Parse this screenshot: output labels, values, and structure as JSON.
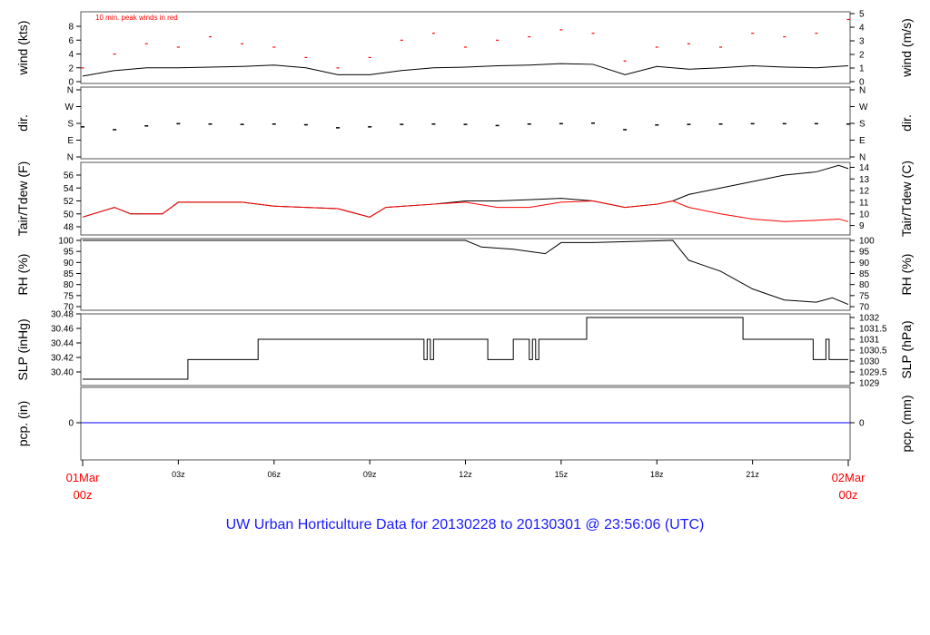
{
  "title": "UW Urban Horticulture Data for 20130228  to  20130301 @ 23:56:06  (UTC)",
  "chart_data": [
    {
      "type": "line",
      "panel": "wind",
      "ylabel": "wind (kts)",
      "ylabel_right": "wind (m/s)",
      "annotation": "10 min. peak winds in red",
      "ylim": [
        0,
        10
      ],
      "yticks": [
        0,
        2,
        4,
        6,
        8
      ],
      "yticks_right": [
        0,
        1,
        2,
        3,
        4,
        5
      ],
      "x": [
        0,
        1,
        2,
        3,
        4,
        5,
        6,
        7,
        8,
        9,
        10,
        11,
        12,
        13,
        14,
        15,
        16,
        17,
        18,
        19,
        20,
        21,
        22,
        23,
        24
      ],
      "series": [
        {
          "color": "#000000",
          "values": [
            0.8,
            1.6,
            2.0,
            2.0,
            2.1,
            2.2,
            2.4,
            2.0,
            1.0,
            1.0,
            1.6,
            2.0,
            2.1,
            2.3,
            2.4,
            2.6,
            2.5,
            1.0,
            2.2,
            1.8,
            2.0,
            2.3,
            2.1,
            2.0,
            2.3
          ]
        },
        {
          "color": "#ff0000",
          "style": "points",
          "values": [
            2.0,
            4.0,
            5.5,
            5.0,
            6.5,
            5.5,
            5.0,
            3.5,
            2.0,
            3.5,
            6.0,
            7.0,
            5.0,
            6.0,
            6.5,
            7.5,
            7.0,
            3.0,
            5.0,
            5.5,
            5.0,
            7.0,
            6.5,
            7.0,
            9.0
          ]
        }
      ]
    },
    {
      "type": "scatter",
      "panel": "dir",
      "ylabel": "dir.",
      "ylabel_right": "dir.",
      "yticks": [
        "N",
        "E",
        "S",
        "W",
        "N"
      ],
      "ylim": [
        0,
        360
      ],
      "x": [
        0,
        1,
        2,
        3,
        4,
        5,
        6,
        7,
        8,
        9,
        10,
        11,
        12,
        13,
        14,
        15,
        16,
        17,
        18,
        19,
        20,
        21,
        22,
        23,
        24
      ],
      "values": [
        165,
        150,
        170,
        182,
        180,
        178,
        180,
        176,
        160,
        165,
        178,
        180,
        178,
        172,
        180,
        182,
        185,
        150,
        175,
        178,
        180,
        182,
        182,
        182,
        180
      ]
    },
    {
      "type": "line",
      "panel": "temperature",
      "ylabel": "Tair/Tdew (F)",
      "ylabel_right": "Tair/Tdew (C)",
      "ylim": [
        46.3,
        57.9
      ],
      "yticks": [
        48,
        50,
        52,
        54,
        56
      ],
      "yticks_right": [
        9,
        10,
        11,
        12,
        13,
        14
      ],
      "x": [
        0,
        1,
        1.5,
        2.5,
        3,
        5,
        6,
        8,
        9,
        9.5,
        11,
        12,
        13,
        14,
        15,
        16,
        17,
        18,
        18.5,
        19,
        20,
        21,
        22,
        23,
        23.7,
        24
      ],
      "series": [
        {
          "name": "Tair",
          "color": "#000000",
          "values": [
            49.5,
            51,
            50,
            50,
            51.8,
            51.8,
            51.2,
            50.8,
            49.5,
            51,
            51.5,
            52,
            52,
            52.2,
            52.4,
            52,
            51,
            51.5,
            52,
            53,
            54,
            55,
            56,
            56.5,
            57.5,
            57
          ]
        },
        {
          "name": "Tdew",
          "color": "#ff0000",
          "values": [
            49.5,
            51,
            50,
            50,
            51.8,
            51.8,
            51.2,
            50.8,
            49.5,
            51,
            51.5,
            51.8,
            51,
            51,
            51.8,
            52,
            51,
            51.5,
            52,
            51,
            50,
            49.2,
            48.8,
            49,
            49.2,
            48.8
          ]
        }
      ]
    },
    {
      "type": "line",
      "panel": "rh",
      "ylabel": "RH (%)",
      "ylabel_right": "RH (%)",
      "ylim": [
        69.5,
        100.5
      ],
      "yticks": [
        70,
        75,
        80,
        85,
        90,
        95,
        100
      ],
      "x": [
        0,
        12,
        12.5,
        13.5,
        14.5,
        15,
        16,
        18.5,
        19,
        20,
        21,
        22,
        23,
        23.5,
        24
      ],
      "values": [
        100,
        100,
        97,
        96,
        94,
        99,
        99,
        100,
        91,
        86,
        78,
        73,
        72,
        74,
        71
      ]
    },
    {
      "type": "line",
      "panel": "slp",
      "style": "step",
      "ylabel": "SLP (inHg)",
      "ylabel_right": "SLP (hPa)",
      "ylim": [
        30.385,
        30.48
      ],
      "yticks": [
        "30.40",
        "30.42",
        "30.44",
        "30.46",
        "30.48"
      ],
      "yticks_right": [
        "1029",
        "1029.5",
        "1030",
        "1030.5",
        "1031",
        "1031.5",
        "1032"
      ],
      "x": [
        0,
        3.3,
        5.5,
        10.7,
        10.8,
        10.9,
        11.0,
        12.7,
        13.5,
        14.0,
        14.1,
        14.2,
        14.3,
        15.8,
        20.7,
        22.9,
        23.3,
        23.4
      ],
      "values": [
        30.39,
        30.417,
        30.445,
        30.417,
        30.445,
        30.417,
        30.445,
        30.417,
        30.445,
        30.417,
        30.445,
        30.417,
        30.445,
        30.475,
        30.445,
        30.417,
        30.445,
        30.417
      ]
    },
    {
      "type": "line",
      "panel": "pcp",
      "ylabel": "pcp. (in)",
      "ylabel_right": "pcp. (mm)",
      "yticks": [
        "0"
      ],
      "yticks_right": [
        "0"
      ],
      "x": [
        0,
        24
      ],
      "values": [
        0,
        0
      ],
      "color": "#0000ff"
    }
  ],
  "xaxis": {
    "ticks": [
      "03z",
      "06z",
      "09z",
      "12z",
      "15z",
      "18z",
      "21z"
    ],
    "start": [
      "01Mar",
      "00z"
    ],
    "end": [
      "02Mar",
      "00z"
    ]
  }
}
